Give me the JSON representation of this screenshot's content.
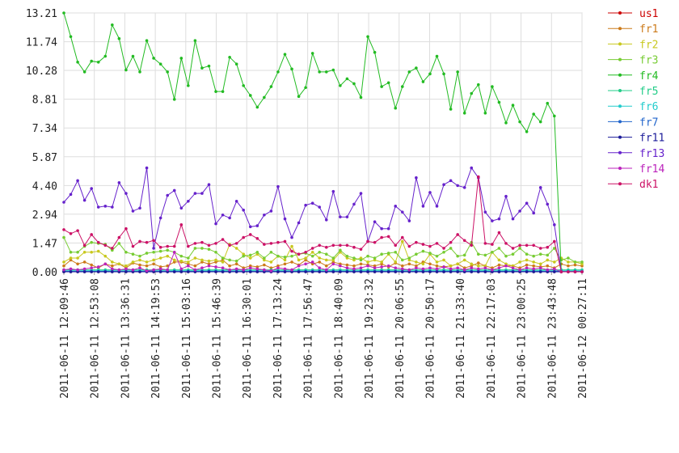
{
  "chart_data": {
    "type": "line",
    "title": "",
    "xlabel": "",
    "ylabel": "",
    "ylim": [
      0,
      13.21
    ],
    "yticks": [
      "0.00",
      "1.47",
      "2.94",
      "4.40",
      "5.87",
      "7.34",
      "8.81",
      "10.28",
      "11.74",
      "13.21"
    ],
    "xticks": [
      "2011-06-11 12:09:46",
      "2011-06-11 12:53:08",
      "2011-06-11 13:36:31",
      "2011-06-11 14:19:53",
      "2011-06-11 15:03:16",
      "2011-06-11 15:46:39",
      "2011-06-11 16:30:01",
      "2011-06-11 17:13:24",
      "2011-06-11 17:56:47",
      "2011-06-11 18:40:09",
      "2011-06-11 19:23:32",
      "2011-06-11 20:06:55",
      "2011-06-11 20:50:17",
      "2011-06-11 21:33:40",
      "2011-06-11 22:17:03",
      "2011-06-11 23:00:25",
      "2011-06-11 23:43:48",
      "2011-06-12 00:27:11"
    ],
    "grid": true,
    "legend_position": "right",
    "series": [
      {
        "name": "us1",
        "color": "#cc0000",
        "values": [
          0,
          0,
          0,
          0,
          0,
          0,
          0,
          0,
          0,
          0,
          0,
          0,
          0,
          0,
          0,
          0,
          0,
          0,
          0,
          0,
          0,
          0,
          0,
          0,
          0,
          0,
          0,
          0,
          0,
          0,
          0,
          0,
          0,
          0,
          0,
          0,
          0,
          0,
          0,
          0,
          0,
          0,
          0,
          0,
          0,
          0,
          0,
          0,
          0,
          0,
          0,
          0,
          0,
          0,
          0,
          0,
          0,
          0,
          0,
          0,
          0,
          0,
          0,
          0,
          0,
          0,
          0,
          0,
          0,
          0,
          0,
          0,
          0,
          0,
          0,
          0
        ]
      },
      {
        "name": "fr1",
        "color": "#cc7a1a",
        "values": [
          0.3,
          0.6,
          0.4,
          0.5,
          0.35,
          0.2,
          0.4,
          0.3,
          0.4,
          0.2,
          0.45,
          0.35,
          0.3,
          0.4,
          0.25,
          0.3,
          0.5,
          0.5,
          0.4,
          0.3,
          0.5,
          0.4,
          0.5,
          0.6,
          0.3,
          0.4,
          0.2,
          0.3,
          0.25,
          0.35,
          0.2,
          0.3,
          0.4,
          0.5,
          0.35,
          0.6,
          0.4,
          0.5,
          0.3,
          0.5,
          0.4,
          0.35,
          0.3,
          0.4,
          0.35,
          0.3,
          0.4,
          0.25,
          0.45,
          0.3,
          0.4,
          0.3,
          0.5,
          0.4,
          0.3,
          0.25,
          0.3,
          0.4,
          0.2,
          0.3,
          0.45,
          0.3,
          0.2,
          0.35,
          0.3,
          0.3,
          0.2,
          0.35,
          0.3,
          0.25,
          0.3,
          0.2,
          0.4,
          0.3,
          0.35,
          0.3
        ]
      },
      {
        "name": "fr2",
        "color": "#c8c81e",
        "values": [
          0.5,
          0.7,
          0.7,
          1.0,
          1.0,
          1.05,
          0.8,
          0.5,
          0.4,
          0.3,
          0.5,
          0.6,
          0.5,
          0.6,
          0.7,
          0.8,
          0.6,
          0.55,
          0.5,
          0.7,
          0.6,
          0.55,
          0.6,
          0.5,
          1.4,
          1.2,
          0.9,
          0.7,
          0.9,
          0.6,
          0.5,
          0.8,
          0.6,
          1.3,
          0.6,
          0.7,
          1.0,
          0.7,
          0.6,
          0.6,
          1.0,
          0.7,
          0.6,
          0.7,
          0.5,
          0.6,
          0.5,
          0.9,
          0.5,
          1.55,
          0.6,
          0.5,
          0.4,
          0.9,
          0.5,
          0.6,
          0.3,
          0.4,
          0.6,
          0.4,
          0.3,
          0.3,
          1.0,
          0.6,
          0.4,
          0.3,
          0.5,
          0.6,
          0.5,
          0.4,
          0.6,
          0.5,
          0.7,
          0.5,
          0.5,
          0.4
        ]
      },
      {
        "name": "fr3",
        "color": "#77cc33",
        "values": [
          1.75,
          1.0,
          1.0,
          1.3,
          1.5,
          1.45,
          1.4,
          1.1,
          1.45,
          1.0,
          0.9,
          0.8,
          0.95,
          1.0,
          1.05,
          1.1,
          1.0,
          0.8,
          0.7,
          1.2,
          1.2,
          1.15,
          1.0,
          0.7,
          0.6,
          0.55,
          0.8,
          0.85,
          1.0,
          0.7,
          1.0,
          0.8,
          0.75,
          0.8,
          0.9,
          0.95,
          0.8,
          1.0,
          0.9,
          0.7,
          1.1,
          0.8,
          0.7,
          0.6,
          0.8,
          0.7,
          0.9,
          0.95,
          1.0,
          0.6,
          0.7,
          0.9,
          1.05,
          0.95,
          0.8,
          1.0,
          1.2,
          0.8,
          0.85,
          1.5,
          0.9,
          0.85,
          1.0,
          1.2,
          0.8,
          0.9,
          1.2,
          0.9,
          0.8,
          0.9,
          0.85,
          1.2,
          0.6,
          0.7,
          0.5,
          0.5
        ]
      },
      {
        "name": "fr4",
        "color": "#22bb22",
        "values": [
          13.21,
          12.0,
          10.7,
          10.2,
          10.75,
          10.7,
          11.0,
          12.6,
          11.9,
          10.3,
          11.0,
          10.2,
          11.8,
          10.9,
          10.6,
          10.2,
          8.8,
          10.9,
          9.5,
          11.8,
          10.4,
          10.5,
          9.2,
          9.2,
          10.95,
          10.6,
          9.5,
          9.0,
          8.4,
          8.9,
          9.45,
          10.2,
          11.1,
          10.35,
          8.95,
          9.4,
          11.15,
          10.2,
          10.2,
          10.3,
          9.5,
          9.85,
          9.6,
          8.9,
          12.0,
          11.2,
          9.45,
          9.65,
          8.35,
          9.45,
          10.2,
          10.4,
          9.7,
          10.1,
          11.0,
          10.1,
          8.3,
          10.2,
          8.1,
          9.1,
          9.55,
          8.1,
          9.45,
          8.65,
          7.6,
          8.5,
          7.65,
          7.15,
          8.05,
          7.65,
          8.6,
          7.95,
          0,
          0,
          0,
          0
        ]
      },
      {
        "name": "fr5",
        "color": "#22cc88",
        "values": [
          0.1,
          0.1,
          0.1,
          0.1,
          0.1,
          0.1,
          0.1,
          0.1,
          0.1,
          0.1,
          0.1,
          0.1,
          0.1,
          0.1,
          0.1,
          0.1,
          0.1,
          0.1,
          0.1,
          0.1,
          0.1,
          0.1,
          0.1,
          0.1,
          0.1,
          0.1,
          0.1,
          0.1,
          0.1,
          0.1,
          0.1,
          0.1,
          0.1,
          0.1,
          0.1,
          0.1,
          0.1,
          0.1,
          0.1,
          0.1,
          0.1,
          0.1,
          0.1,
          0.1,
          0.1,
          0.1,
          0.1,
          0.1,
          0.1,
          0.1,
          0.1,
          0.1,
          0.1,
          0.1,
          0.1,
          0.1,
          0.1,
          0.1,
          0.1,
          0.1,
          0.1,
          0.1,
          0.1,
          0.1,
          0.1,
          0.1,
          0.1,
          0.1,
          0.1,
          0.1,
          0.1,
          0.1,
          0.1,
          0.1,
          0.1,
          0.1
        ]
      },
      {
        "name": "fr6",
        "color": "#22cccc",
        "values": [
          0.05,
          0.05,
          0.05,
          0.05,
          0.05,
          0.05,
          0.05,
          0.05,
          0.05,
          0.05,
          0.05,
          0.05,
          0.05,
          0.05,
          0.05,
          0.05,
          0.05,
          0.05,
          0.05,
          0.05,
          0.05,
          0.05,
          0.05,
          0.05,
          0.05,
          0.05,
          0.05,
          0.05,
          0.05,
          0.05,
          0.05,
          0.05,
          0.05,
          0.05,
          0.05,
          0.05,
          0.05,
          0.05,
          0.05,
          0.05,
          0.05,
          0.05,
          0.05,
          0.05,
          0.05,
          0.05,
          0.05,
          0.05,
          0.05,
          0.05,
          0.05,
          0.05,
          0.05,
          0.05,
          0.05,
          0.05,
          0.05,
          0.05,
          0.05,
          0.05,
          0.05,
          0.05,
          0.05,
          0.05,
          0.05,
          0.05,
          0.05,
          0.05,
          0.05,
          0.05,
          0.05,
          0.05,
          0.05,
          0.05,
          0.05,
          0.05
        ]
      },
      {
        "name": "fr7",
        "color": "#2266cc",
        "values": [
          0.02,
          0.02,
          0.02,
          0.02,
          0.02,
          0.02,
          0.02,
          0.02,
          0.02,
          0.02,
          0.02,
          0.02,
          0.02,
          0.02,
          0.02,
          0.02,
          0.02,
          0.02,
          0.02,
          0.02,
          0.02,
          0.02,
          0.02,
          0.02,
          0.02,
          0.02,
          0.02,
          0.02,
          0.02,
          0.02,
          0.02,
          0.02,
          0.02,
          0.02,
          0.02,
          0.02,
          0.02,
          0.02,
          0.02,
          0.02,
          0.02,
          0.02,
          0.02,
          0.02,
          0.02,
          0.02,
          0.02,
          0.02,
          0.02,
          0.02,
          0.02,
          0.02,
          0.02,
          0.02,
          0.02,
          0.02,
          0.02,
          0.02,
          0.02,
          0.02,
          0.02,
          0.02,
          0.02,
          0.02,
          0.02,
          0.02,
          0.02,
          0.02,
          0.02,
          0.02,
          0.02,
          0.02,
          0.02,
          0.02,
          0.02,
          0.02
        ]
      },
      {
        "name": "fr11",
        "color": "#1a1a99",
        "values": [
          0,
          0,
          0,
          0,
          0,
          0,
          0,
          0,
          0,
          0,
          0,
          0,
          0,
          0,
          0,
          0,
          0,
          0,
          0,
          0,
          0,
          0,
          0,
          0,
          0,
          0,
          0,
          0,
          0,
          0,
          0,
          0,
          0,
          0,
          0,
          0,
          0,
          0,
          0,
          0,
          0,
          0,
          0,
          0,
          0,
          0,
          0,
          0,
          0,
          0,
          0,
          0,
          0,
          0,
          0,
          0,
          0,
          0,
          0,
          0,
          0,
          0,
          0,
          0,
          0,
          0,
          0,
          0,
          0,
          0,
          0,
          0,
          0,
          0,
          0,
          0
        ]
      },
      {
        "name": "fr13",
        "color": "#6622cc",
        "values": [
          3.55,
          3.95,
          4.65,
          3.65,
          4.25,
          3.3,
          3.35,
          3.3,
          4.55,
          4.0,
          3.1,
          3.25,
          5.3,
          1.2,
          2.75,
          3.9,
          4.15,
          3.25,
          3.6,
          4.0,
          4.0,
          4.45,
          2.45,
          2.9,
          2.75,
          3.6,
          3.15,
          2.3,
          2.35,
          2.9,
          3.1,
          4.35,
          2.7,
          1.75,
          2.5,
          3.4,
          3.5,
          3.3,
          2.65,
          4.1,
          2.8,
          2.8,
          3.45,
          4.0,
          1.55,
          2.55,
          2.2,
          2.2,
          3.35,
          3.05,
          2.6,
          4.8,
          3.35,
          4.05,
          3.35,
          4.45,
          4.65,
          4.4,
          4.3,
          5.3,
          4.8,
          3.05,
          2.6,
          2.7,
          3.85,
          2.7,
          3.1,
          3.5,
          3.0,
          4.3,
          3.45,
          2.4,
          0,
          0,
          0,
          0
        ]
      },
      {
        "name": "fr14",
        "color": "#bb22bb",
        "values": [
          0.1,
          0.15,
          0.1,
          0.15,
          0.2,
          0.25,
          0.4,
          0.15,
          0.1,
          0.15,
          0.1,
          0.2,
          0.05,
          0.1,
          0.15,
          0.1,
          1.0,
          0.15,
          0.3,
          0.1,
          0.2,
          0.3,
          0.25,
          0.2,
          0.1,
          0.15,
          0.1,
          0.2,
          0.15,
          0.1,
          0.05,
          0.2,
          0.15,
          0.1,
          0.3,
          0.4,
          0.5,
          0.2,
          0.1,
          0.4,
          0.3,
          0.2,
          0.15,
          0.2,
          0.3,
          0.2,
          0.25,
          0.3,
          0.2,
          0.15,
          0.1,
          0.2,
          0.15,
          0.2,
          0.15,
          0.25,
          0.15,
          0.2,
          0.1,
          0.2,
          0.15,
          0.2,
          0.1,
          0.2,
          0.3,
          0.2,
          0.1,
          0.2,
          0.15,
          0.2,
          0.1,
          0.15,
          0,
          0,
          0,
          0
        ]
      },
      {
        "name": "dk1",
        "color": "#cc1166",
        "values": [
          2.15,
          1.95,
          2.1,
          1.35,
          1.9,
          1.5,
          1.35,
          1.2,
          1.75,
          2.2,
          1.3,
          1.55,
          1.5,
          1.6,
          1.25,
          1.3,
          1.3,
          2.4,
          1.3,
          1.45,
          1.5,
          1.35,
          1.45,
          1.65,
          1.35,
          1.45,
          1.75,
          1.9,
          1.7,
          1.4,
          1.45,
          1.5,
          1.55,
          1.05,
          0.9,
          1.0,
          1.2,
          1.35,
          1.25,
          1.35,
          1.35,
          1.35,
          1.25,
          1.15,
          1.55,
          1.5,
          1.75,
          1.8,
          1.35,
          1.75,
          1.3,
          1.5,
          1.4,
          1.3,
          1.45,
          1.2,
          1.5,
          1.9,
          1.6,
          1.35,
          4.85,
          1.45,
          1.4,
          2.0,
          1.45,
          1.2,
          1.35,
          1.35,
          1.35,
          1.2,
          1.25,
          1.55,
          0,
          0,
          0,
          0
        ]
      }
    ]
  }
}
